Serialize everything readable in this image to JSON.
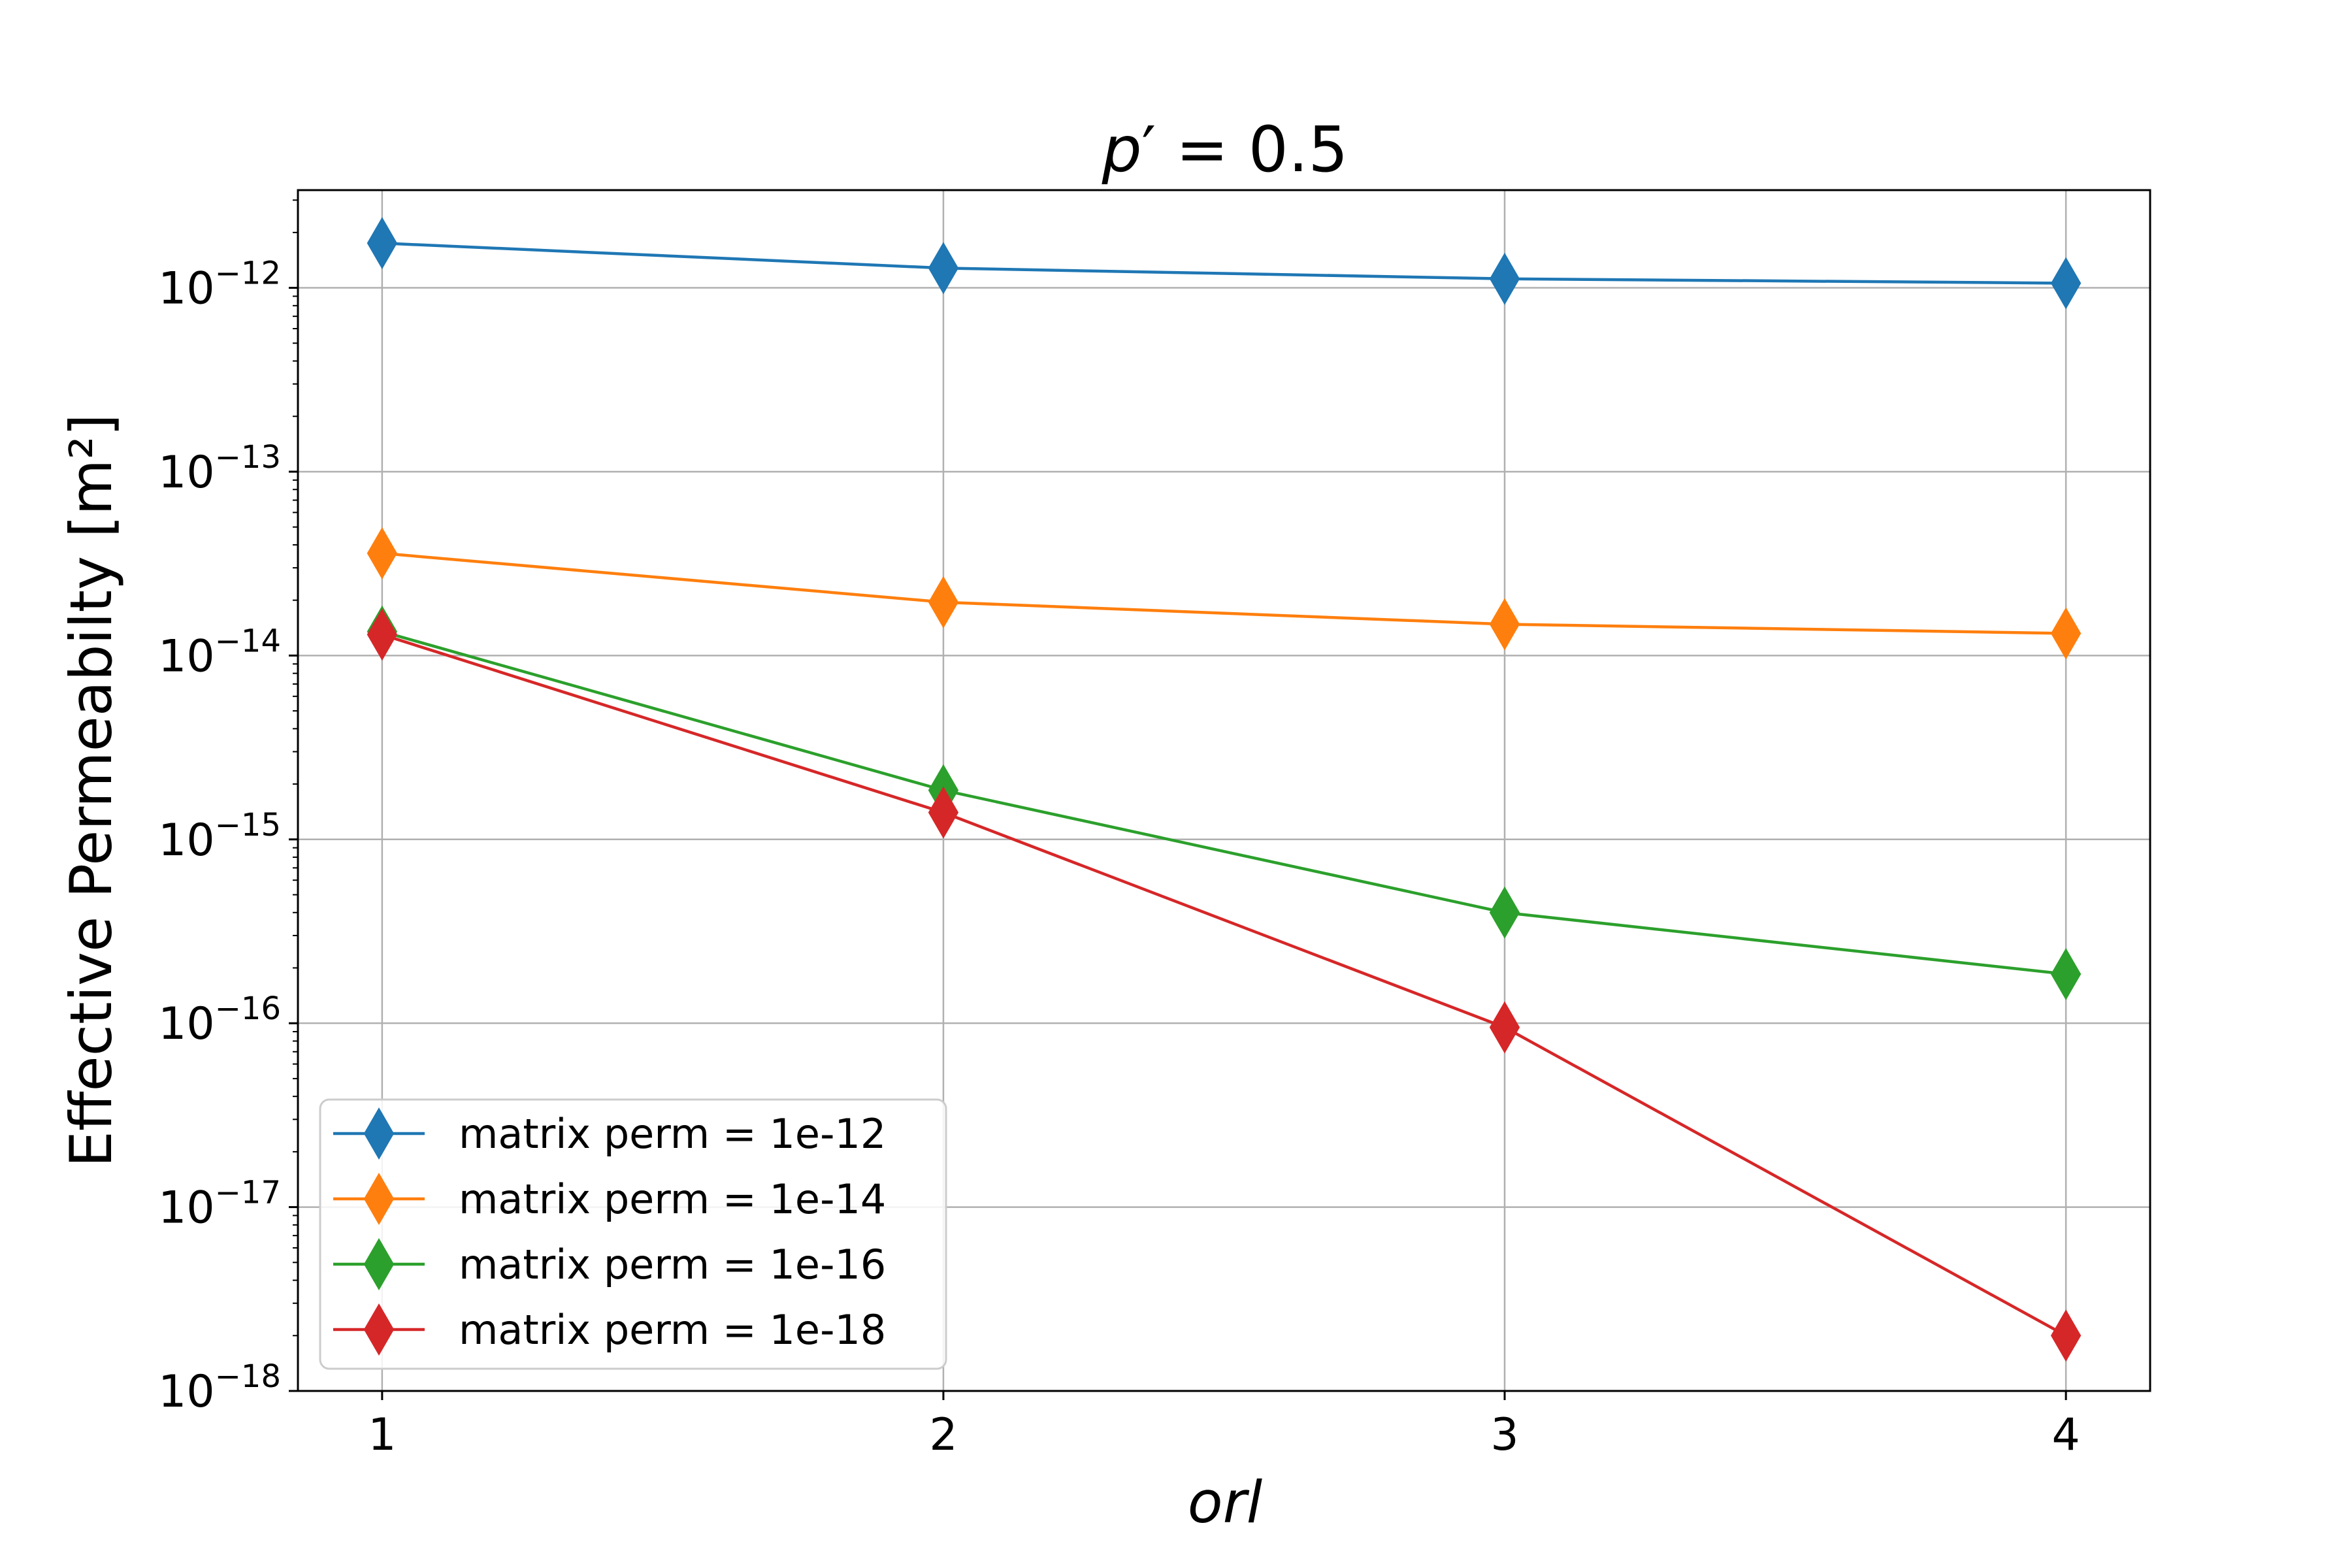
{
  "chart_data": {
    "type": "line",
    "title": "p′ = 0.5",
    "xlabel": "orl",
    "ylabel": "Effective Permeabilty [m²]",
    "x": [
      1,
      2,
      3,
      4
    ],
    "x_ticks": [
      "1",
      "2",
      "3",
      "4"
    ],
    "xlim": [
      0.85,
      4.15
    ],
    "y_scale": "log",
    "ylim": [
      1e-18,
      3.4e-12
    ],
    "y_ticks": [
      {
        "base": "10",
        "exp": "−12",
        "value": 1e-12
      },
      {
        "base": "10",
        "exp": "−13",
        "value": 1e-13
      },
      {
        "base": "10",
        "exp": "−14",
        "value": 1e-14
      },
      {
        "base": "10",
        "exp": "−15",
        "value": 1e-15
      },
      {
        "base": "10",
        "exp": "−16",
        "value": 1e-16
      },
      {
        "base": "10",
        "exp": "−17",
        "value": 1e-17
      },
      {
        "base": "10",
        "exp": "−18",
        "value": 1e-18
      }
    ],
    "grid": true,
    "legend_position": "lower-left",
    "marker": "thin-diamond",
    "series": [
      {
        "name": "matrix perm = 1e-12",
        "color": "#1f77b4",
        "values": [
          1.75e-12,
          1.28e-12,
          1.12e-12,
          1.06e-12
        ]
      },
      {
        "name": "matrix perm = 1e-14",
        "color": "#ff7f0e",
        "values": [
          3.6e-14,
          1.95e-14,
          1.48e-14,
          1.32e-14
        ]
      },
      {
        "name": "matrix perm = 1e-16",
        "color": "#2ca02c",
        "values": [
          1.35e-14,
          1.85e-15,
          4e-16,
          1.85e-16
        ]
      },
      {
        "name": "matrix perm = 1e-18",
        "color": "#d62728",
        "values": [
          1.3e-14,
          1.4e-15,
          9.5e-17,
          2e-18
        ]
      }
    ]
  }
}
